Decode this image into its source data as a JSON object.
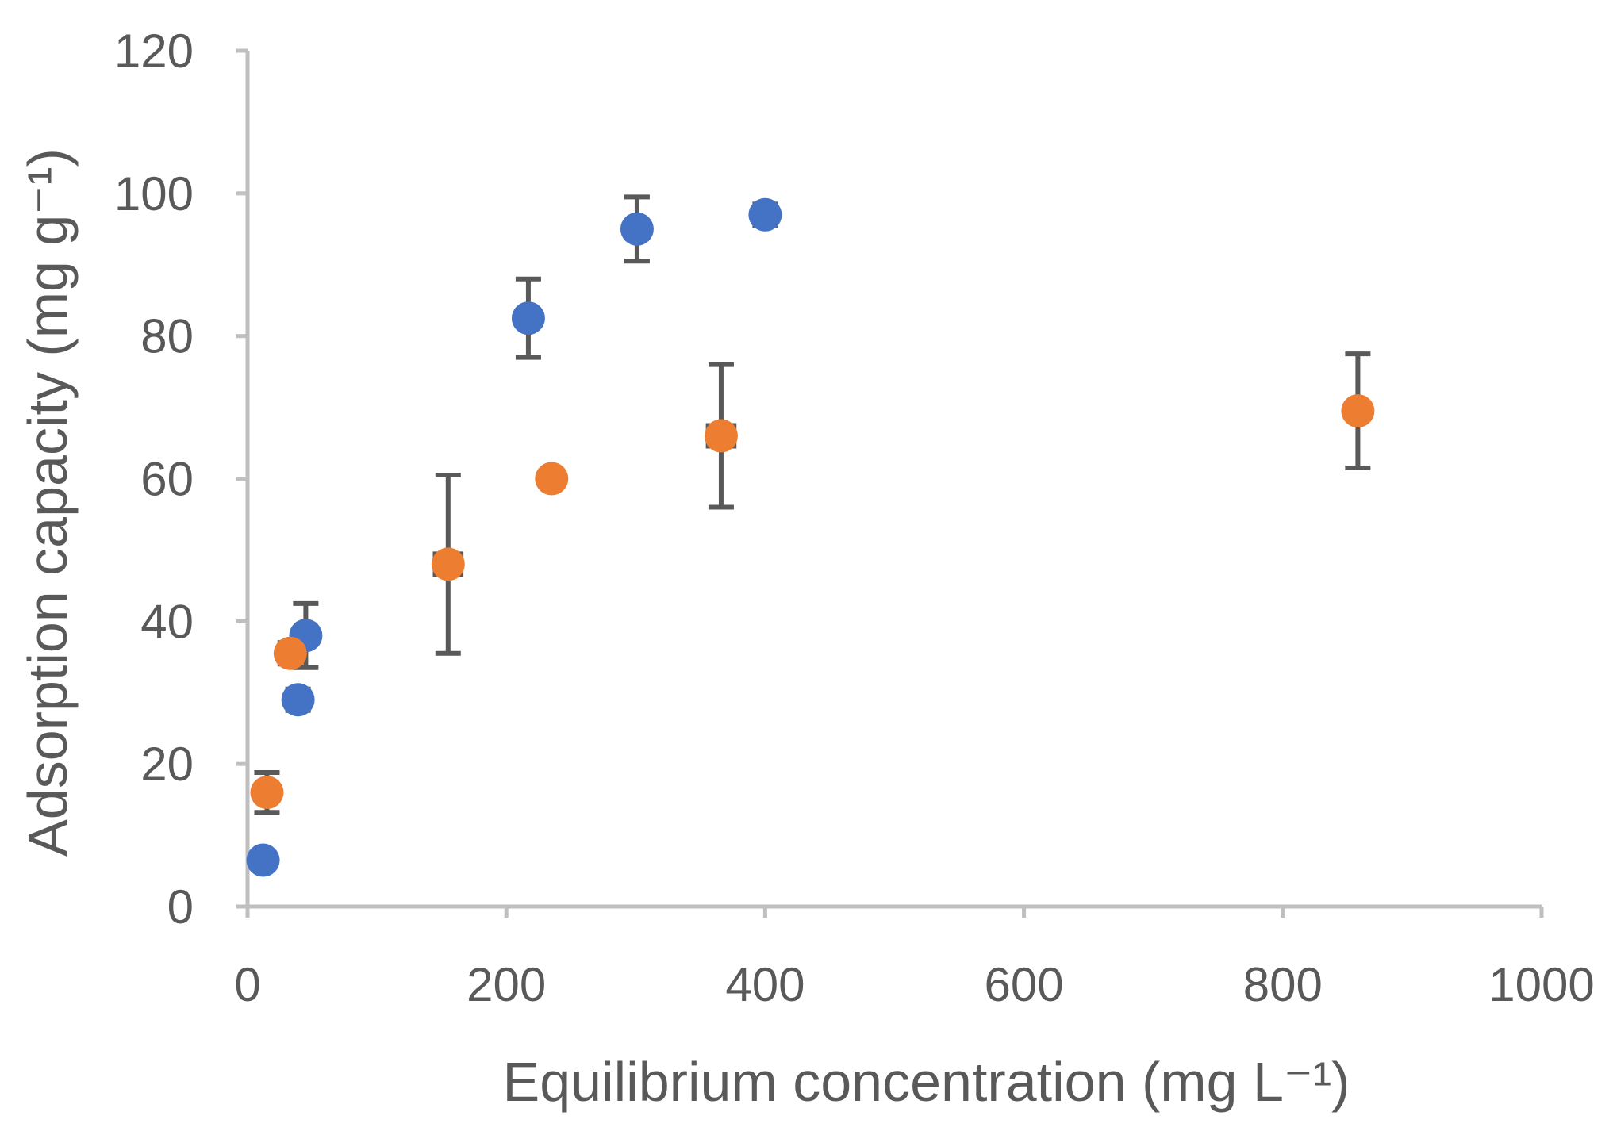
{
  "chart_data": {
    "type": "scatter",
    "title": "",
    "xlabel": "Equilibrium concentration (mg L⁻¹)",
    "ylabel": "Adsorption capacity (mg g⁻¹)",
    "xlim": [
      0,
      1000
    ],
    "ylim": [
      0,
      120
    ],
    "x_ticks": [
      0,
      200,
      400,
      600,
      800,
      1000
    ],
    "y_ticks": [
      0,
      20,
      40,
      60,
      80,
      100,
      120
    ],
    "x_tick_labels": [
      "0",
      "200",
      "400",
      "600",
      "800",
      "1000"
    ],
    "y_tick_labels": [
      "0",
      "20",
      "40",
      "60",
      "80",
      "100",
      "120"
    ],
    "grid": false,
    "legend": "none",
    "series": [
      {
        "name": "blue series",
        "color": "#4472c4",
        "points": [
          {
            "x": 12,
            "y": 6.5,
            "yerr": 0,
            "xerr": 0
          },
          {
            "x": 39,
            "y": 29,
            "yerr": 1.5,
            "xerr": 0
          },
          {
            "x": 45,
            "y": 38,
            "yerr": 4.5,
            "xerr": 0
          },
          {
            "x": 217,
            "y": 82.5,
            "yerr": 5.5,
            "xerr": 0
          },
          {
            "x": 301,
            "y": 95,
            "yerr": 4.5,
            "xerr": 0
          },
          {
            "x": 400,
            "y": 97,
            "yerr": 1.5,
            "xerr": 0
          }
        ]
      },
      {
        "name": "orange series",
        "color": "#ed7d31",
        "points": [
          {
            "x": 15,
            "y": 16,
            "yerr": 2.8,
            "xerr": 0
          },
          {
            "x": 33,
            "y": 35.5,
            "yerr": 1.5,
            "xerr": 0
          },
          {
            "x": 155,
            "y": 48,
            "yerr": 12.5,
            "xerr": 10
          },
          {
            "x": 235,
            "y": 60,
            "yerr": 0,
            "xerr": 0
          },
          {
            "x": 366,
            "y": 66,
            "yerr": 10,
            "xerr": 10
          },
          {
            "x": 858,
            "y": 69.5,
            "yerr": 8,
            "xerr": 0
          }
        ]
      }
    ]
  }
}
